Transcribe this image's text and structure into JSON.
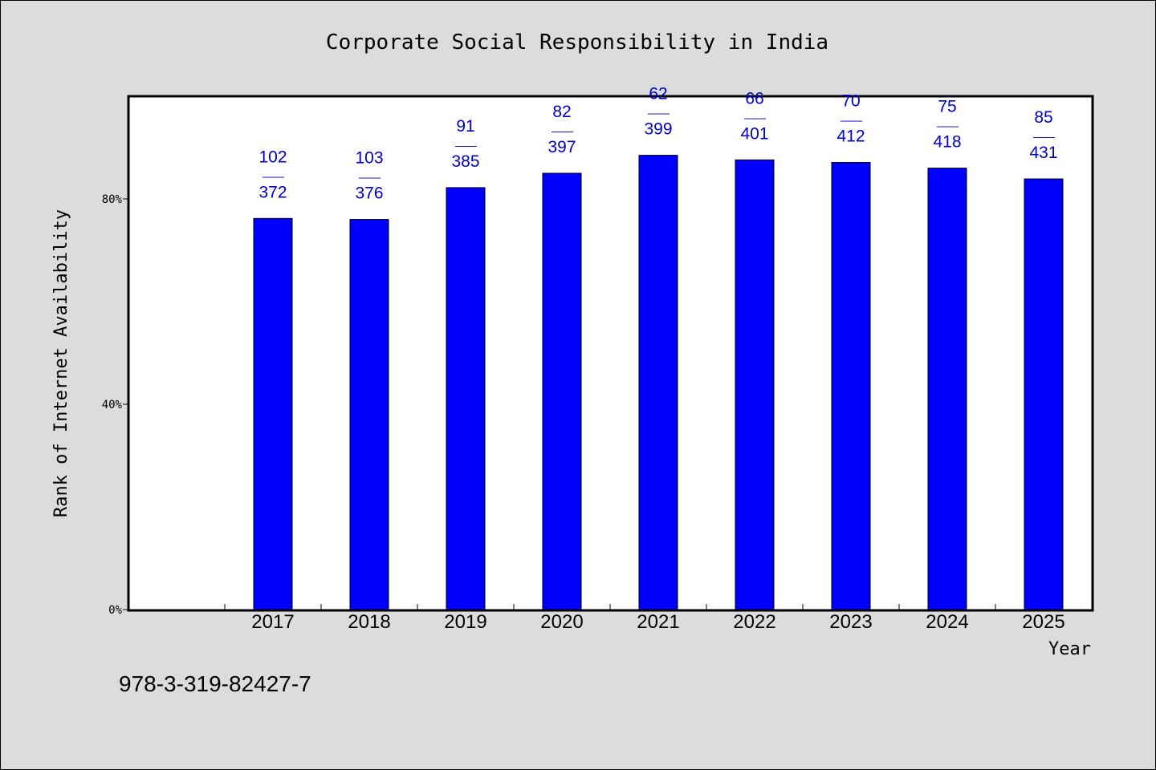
{
  "chart_data": {
    "type": "bar",
    "title": "Corporate Social Responsibility in India",
    "xlabel": "Year",
    "ylabel": "Rank of Internet Availability",
    "categories": [
      "2017",
      "2018",
      "2019",
      "2020",
      "2021",
      "2022",
      "2023",
      "2024",
      "2025"
    ],
    "values": [
      76.2,
      76.0,
      82.2,
      85.0,
      88.5,
      87.6,
      87.1,
      86.0,
      83.9
    ],
    "value_unit": "%",
    "data_labels": [
      [
        "102",
        "372"
      ],
      [
        "103",
        "376"
      ],
      [
        "91",
        "385"
      ],
      [
        "82",
        "397"
      ],
      [
        "62",
        "399"
      ],
      [
        "66",
        "401"
      ],
      [
        "70",
        "412"
      ],
      [
        "75",
        "418"
      ],
      [
        "85",
        "431"
      ]
    ],
    "label_separator": "——",
    "yticks": [
      0,
      40,
      80
    ],
    "ytick_labels": [
      "0%",
      "40%",
      "80%"
    ],
    "ylim": [
      0,
      100
    ],
    "grid": false,
    "legend": "none",
    "bar_color": "#0000ff",
    "label_color": "#0000cc",
    "background_color": "#dcdcdc",
    "plot_background_color": "#ffffff"
  },
  "footer_code": "978-3-319-82427-7"
}
